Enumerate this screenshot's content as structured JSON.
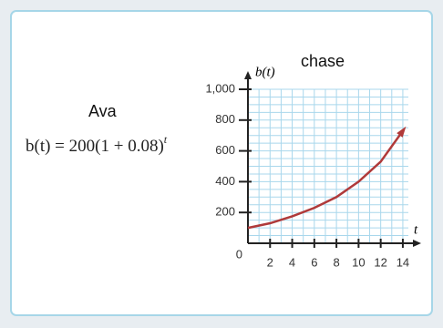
{
  "labels": {
    "left": "Ava",
    "right": "chase"
  },
  "equation": {
    "text": "b(t) = 200(1 + 0.08)",
    "exponent": "t"
  },
  "chart_data": {
    "type": "line",
    "x_label": "t",
    "y_label": "b(t)",
    "x": [
      0,
      2,
      4,
      6,
      8,
      10,
      12,
      14
    ],
    "series": [
      {
        "color": "#b03a3a",
        "values": [
          100,
          130,
          175,
          230,
          300,
          400,
          530,
          730
        ]
      }
    ],
    "xlim": [
      0,
      14.5
    ],
    "ylim": [
      0,
      1000
    ],
    "xticks": [
      2,
      4,
      6,
      8,
      10,
      12,
      14
    ],
    "yticks": [
      0,
      200,
      400,
      600,
      800,
      {
        "value": 1000,
        "label": "1,000"
      }
    ],
    "grid": true
  }
}
